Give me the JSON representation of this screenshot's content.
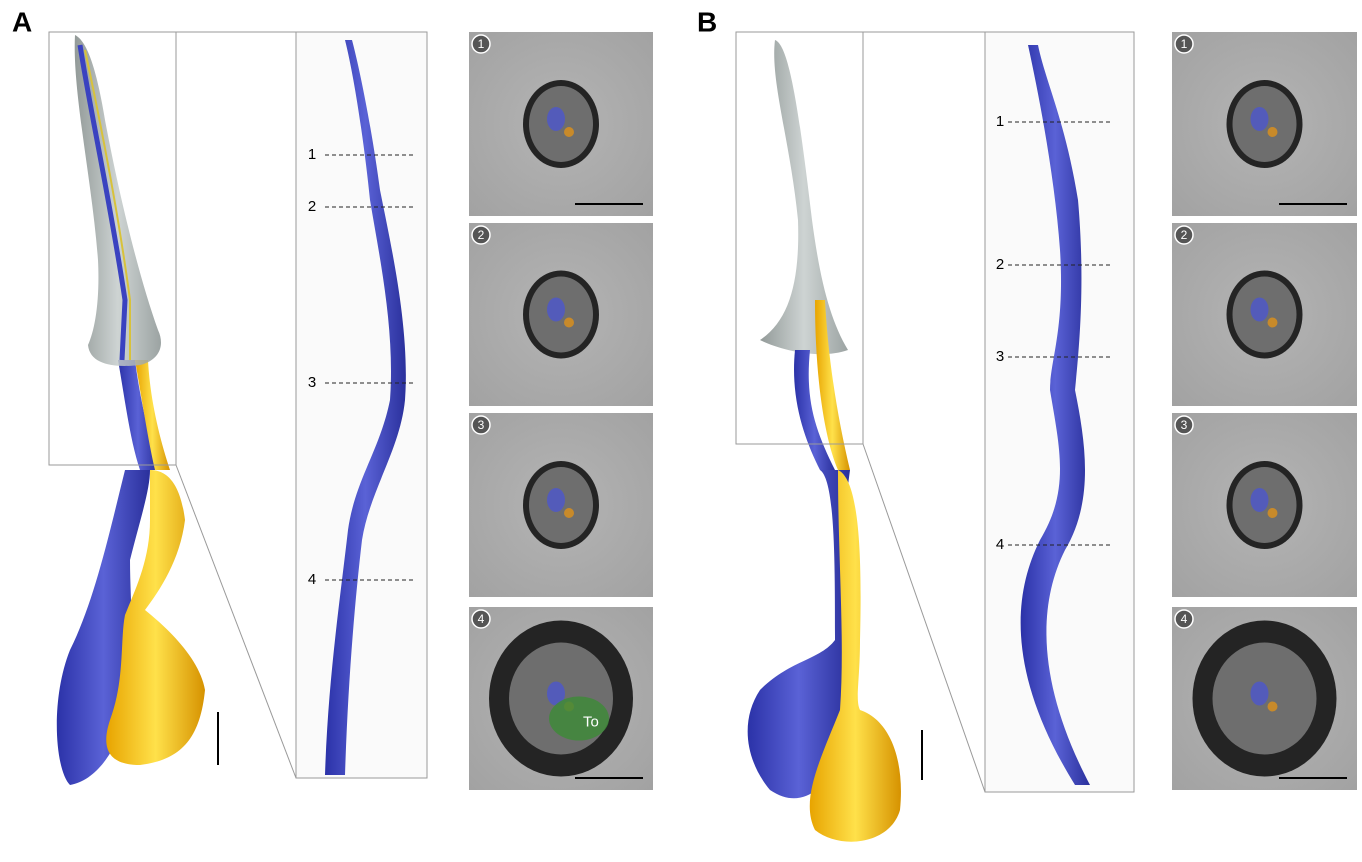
{
  "panels": [
    {
      "label": "A",
      "section_markers": [
        "1",
        "2",
        "3",
        "4"
      ],
      "insets": [
        {
          "number": "1"
        },
        {
          "number": "2"
        },
        {
          "number": "3"
        },
        {
          "number": "4",
          "annotation": "To"
        }
      ]
    },
    {
      "label": "B",
      "section_markers": [
        "1",
        "2",
        "3",
        "4"
      ],
      "insets": [
        {
          "number": "1"
        },
        {
          "number": "2"
        },
        {
          "number": "3"
        },
        {
          "number": "4"
        }
      ]
    }
  ]
}
